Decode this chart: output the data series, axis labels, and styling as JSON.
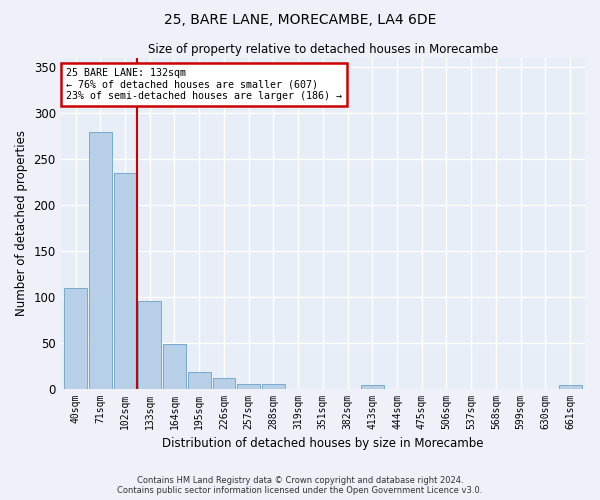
{
  "title": "25, BARE LANE, MORECAMBE, LA4 6DE",
  "subtitle": "Size of property relative to detached houses in Morecambe",
  "xlabel": "Distribution of detached houses by size in Morecambe",
  "ylabel": "Number of detached properties",
  "categories": [
    "40sqm",
    "71sqm",
    "102sqm",
    "133sqm",
    "164sqm",
    "195sqm",
    "226sqm",
    "257sqm",
    "288sqm",
    "319sqm",
    "351sqm",
    "382sqm",
    "413sqm",
    "444sqm",
    "475sqm",
    "506sqm",
    "537sqm",
    "568sqm",
    "599sqm",
    "630sqm",
    "661sqm"
  ],
  "values": [
    110,
    280,
    235,
    95,
    49,
    18,
    11,
    5,
    5,
    0,
    0,
    0,
    4,
    0,
    0,
    0,
    0,
    0,
    0,
    0,
    4
  ],
  "bar_color": "#b8cfe8",
  "bar_edge_color": "#7aaad0",
  "annotation_line1": "25 BARE LANE: 132sqm",
  "annotation_line2": "← 76% of detached houses are smaller (607)",
  "annotation_line3": "23% of semi-detached houses are larger (186) →",
  "annotation_box_color": "#ffffff",
  "annotation_box_edge": "#cc0000",
  "redline_color": "#cc0000",
  "ylim": [
    0,
    360
  ],
  "yticks": [
    0,
    50,
    100,
    150,
    200,
    250,
    300,
    350
  ],
  "background_color": "#e8eef8",
  "grid_color": "#ffffff",
  "footer_line1": "Contains HM Land Registry data © Crown copyright and database right 2024.",
  "footer_line2": "Contains public sector information licensed under the Open Government Licence v3.0."
}
